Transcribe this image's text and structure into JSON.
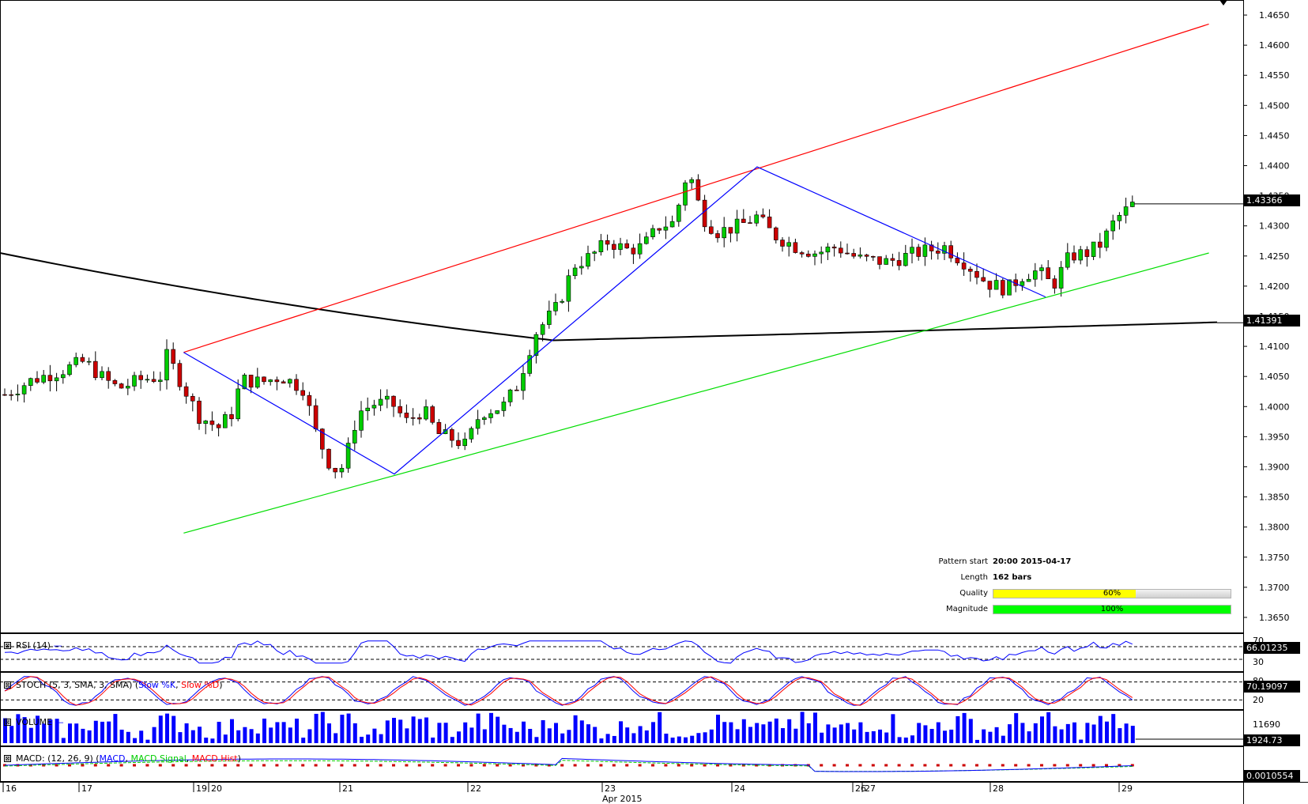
{
  "chart_data": {
    "type": "candlestick",
    "instrument_last_price": "1.43366",
    "sma_value": "1.41391",
    "price_axis": {
      "ylim": [
        1.3625,
        1.4675
      ],
      "ticks": [
        "1.4650",
        "1.4600",
        "1.4550",
        "1.4500",
        "1.4450",
        "1.4400",
        "1.4350",
        "1.4300",
        "1.4250",
        "1.4200",
        "1.4150",
        "1.4100",
        "1.4050",
        "1.4000",
        "1.3950",
        "1.3900",
        "1.3850",
        "1.3800",
        "1.3750",
        "1.3700",
        "1.3650"
      ]
    },
    "date_axis": {
      "labels": [
        "16",
        "17",
        "19",
        "20",
        "21",
        "22",
        "23",
        "24",
        "26",
        "27",
        "28",
        "29"
      ],
      "month_label": "Apr 2015"
    },
    "pattern_lines": {
      "resistance": {
        "from": [
          163,
          1.409
        ],
        "to": [
          1073,
          1.4635
        ],
        "color": "#ff0000"
      },
      "support": {
        "from": [
          163,
          1.379
        ],
        "to": [
          1073,
          1.4255
        ],
        "color": "#00dd00"
      },
      "zigzag": [
        [
          163,
          1.409
        ],
        [
          350,
          1.3888
        ],
        [
          672,
          1.4398
        ],
        [
          928,
          1.4182
        ]
      ]
    },
    "pattern_info": {
      "pattern_start_label": "Pattern start",
      "pattern_start_value": "20:00 2015-04-17",
      "length_label": "Length",
      "length_value": "162 bars",
      "quality_label": "Quality",
      "quality_value": "60%",
      "quality_pct": 60,
      "magnitude_label": "Magnitude",
      "magnitude_value": "100%",
      "magnitude_pct": 100
    },
    "indicators": {
      "rsi": {
        "label": "RSI (14)",
        "value": "66.01235",
        "levels": [
          "70",
          "30"
        ]
      },
      "stoch": {
        "label_prefix": "STOCH (5, 3, SMA, 3, SMA) (",
        "slow_k": "Slow %K",
        "sep": ", ",
        "slow_d": "Slow %D",
        "label_suffix": ")",
        "value": "70.19097",
        "levels": [
          "80",
          "20"
        ]
      },
      "volume": {
        "label": "VOLUME",
        "value": "1924.73",
        "axis_tick": "11690"
      },
      "macd": {
        "label_prefix": "MACD: (12, 26, 9) (",
        "macd": "MACD",
        "sep1": ", ",
        "signal": "MACD Signal",
        "sep2": ", ",
        "hist": "MACD Hist",
        "label_suffix": ")",
        "value": "0.0010554"
      }
    },
    "colors": {
      "up": "#00cc00",
      "down": "#cc0000",
      "sma": "#000000",
      "zigzag": "#0000ff",
      "rsi": "#0000ff",
      "volume": "#0000ff"
    }
  }
}
